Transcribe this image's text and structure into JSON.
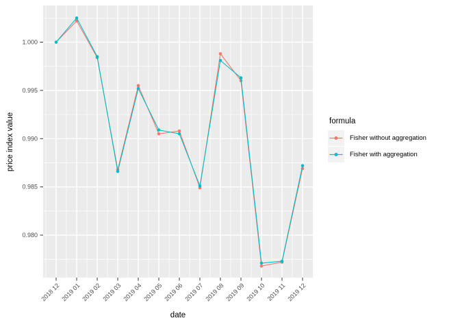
{
  "chart_data": {
    "type": "line",
    "title": "",
    "xlabel": "date",
    "ylabel": "price index value",
    "categories": [
      "2018 12",
      "2019 01",
      "2019 02",
      "2019 03",
      "2019 04",
      "2019 05",
      "2019 06",
      "2019 07",
      "2019 08",
      "2019 09",
      "2019 10",
      "2019 11",
      "2019 12"
    ],
    "series": [
      {
        "name": "Fisher without aggregation",
        "color": "#F8766D",
        "values": [
          1.0,
          1.0022,
          0.9984,
          0.9868,
          0.9955,
          0.9905,
          0.9908,
          0.9849,
          0.9988,
          0.996,
          0.9768,
          0.9772,
          0.9869
        ]
      },
      {
        "name": "Fisher with aggregation",
        "color": "#00BFC4",
        "values": [
          1.0,
          1.0025,
          0.9985,
          0.9866,
          0.9952,
          0.9909,
          0.9905,
          0.9851,
          0.9981,
          0.9963,
          0.9771,
          0.9773,
          0.9872
        ]
      }
    ],
    "y_ticks": {
      "values": [
        1.0,
        0.995,
        0.99,
        0.985,
        0.98
      ],
      "labels": [
        "1.000",
        "0.995",
        "0.990",
        "0.985",
        "0.980"
      ]
    },
    "ylim": [
      0.9756,
      1.0038
    ],
    "grid": true,
    "legend": {
      "title": "formula",
      "position": "right",
      "entries": [
        {
          "label": "Fisher without aggregation",
          "color": "#F8766D"
        },
        {
          "label": "Fisher with aggregation",
          "color": "#00BFC4"
        }
      ]
    },
    "colors": {
      "panel_bg": "#EBEBEB",
      "grid": "#FFFFFF",
      "tick_label": "#4D4D4D",
      "tick_mark": "#333333",
      "legend_key_bg": "#F2F2F2"
    }
  }
}
